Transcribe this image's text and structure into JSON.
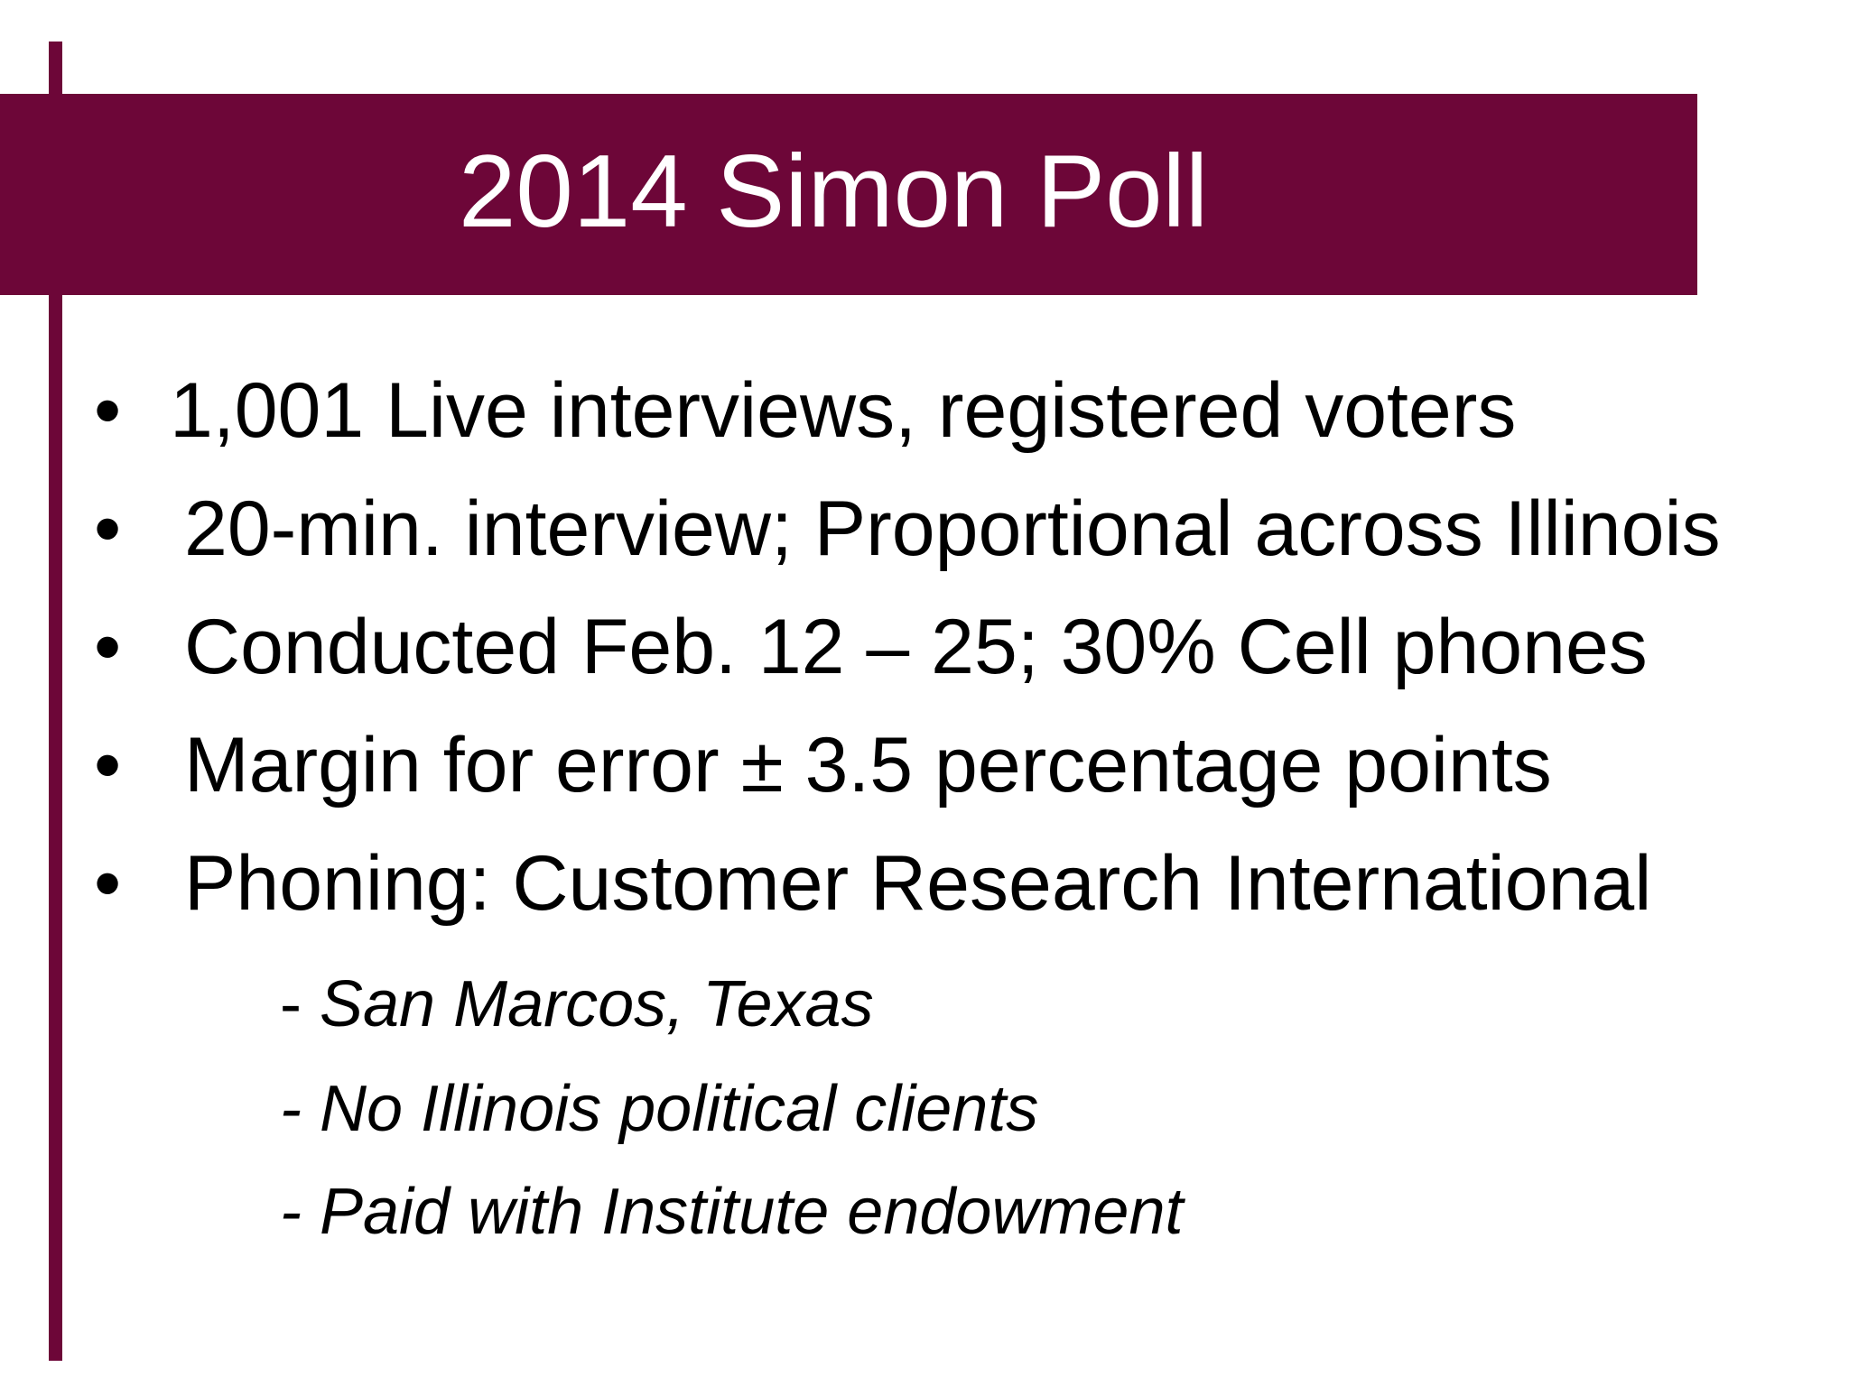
{
  "slide": {
    "title": "2014 Simon Poll",
    "accent_color": "#6d0638",
    "bullets": [
      {
        "marker": "•",
        "text": "1,001 Live interviews, registered voters"
      },
      {
        "marker": "•",
        "text": "20-min. interview; Proportional across Illinois"
      },
      {
        "marker": "•",
        "text": "Conducted Feb. 12 – 25; 30% Cell phones"
      },
      {
        "marker": "•",
        "text": "Margin for error ± 3.5 percentage points"
      },
      {
        "marker": "•",
        "text": "Phoning: Customer Research International"
      }
    ],
    "sub_bullets": [
      {
        "dash": "- ",
        "text": "San Marcos, Texas"
      },
      {
        "dash": "- ",
        "text": "No Illinois political clients"
      },
      {
        "dash": "- ",
        "text": "Paid with Institute endowment"
      }
    ]
  }
}
